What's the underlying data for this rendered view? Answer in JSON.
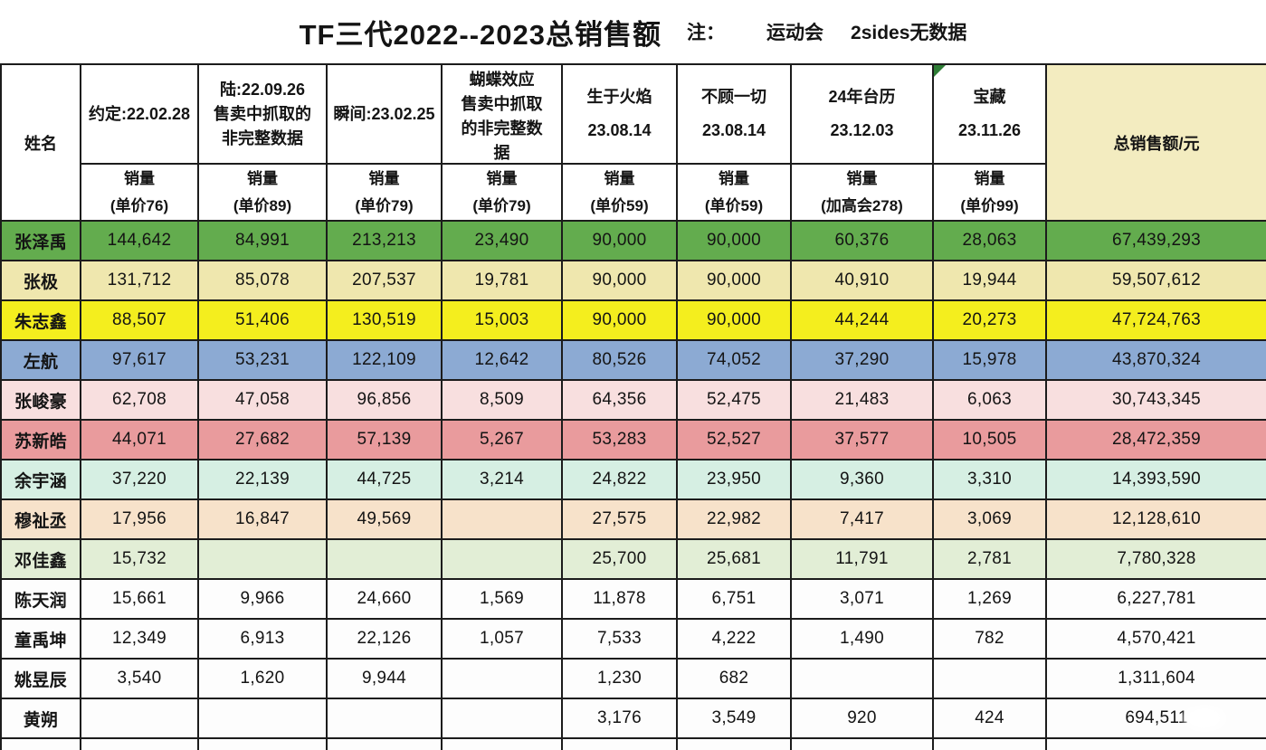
{
  "title": {
    "main": "TF三代2022--2023总销售额",
    "note_label": "注：",
    "note_items": [
      "运动会",
      "2sides无数据"
    ]
  },
  "colors": {
    "total_header_bg": "#f3ecc0",
    "grid_line": "#1c1c1c",
    "corner_marker_green": "#2e7d36"
  },
  "table": {
    "name_header": "姓名",
    "total_header": "总销售额/元",
    "products": [
      {
        "lines": [
          "约定:22.02.28"
        ],
        "sub": "销量",
        "price": "(单价76)"
      },
      {
        "lines": [
          "陆:22.09.26",
          "售卖中抓取的",
          "非完整数据"
        ],
        "sub": "销量",
        "price": "(单价89)"
      },
      {
        "lines": [
          "瞬间:23.02.25"
        ],
        "sub": "销量",
        "price": "(单价79)"
      },
      {
        "lines": [
          "蝴蝶效应",
          "售卖中抓取",
          "的非完整数",
          "据"
        ],
        "sub": "销量",
        "price": "(单价79)"
      },
      {
        "lines": [
          "生于火焰",
          "23.08.14"
        ],
        "sub": "销量",
        "price": "(单价59)"
      },
      {
        "lines": [
          "不顾一切",
          "23.08.14"
        ],
        "sub": "销量",
        "price": "(单价59)"
      },
      {
        "lines": [
          "24年台历",
          "23.12.03"
        ],
        "sub": "销量",
        "price": "(加高会278)"
      },
      {
        "lines": [
          "宝藏",
          "23.11.26"
        ],
        "sub": "销量",
        "price": "(单价99)",
        "corner_marker": "green-triangle"
      }
    ],
    "rows": [
      {
        "name": "张泽禹",
        "color": "#63ac4e",
        "values": [
          "144,642",
          "84,991",
          "213,213",
          "23,490",
          "90,000",
          "90,000",
          "60,376",
          "28,063"
        ],
        "total": "67,439,293"
      },
      {
        "name": "张极",
        "color": "#efe7ae",
        "values": [
          "131,712",
          "85,078",
          "207,537",
          "19,781",
          "90,000",
          "90,000",
          "40,910",
          "19,944"
        ],
        "total": "59,507,612"
      },
      {
        "name": "朱志鑫",
        "color": "#f4ee1e",
        "values": [
          "88,507",
          "51,406",
          "130,519",
          "15,003",
          "90,000",
          "90,000",
          "44,244",
          "20,273"
        ],
        "total": "47,724,763"
      },
      {
        "name": "左航",
        "color": "#8caad3",
        "values": [
          "97,617",
          "53,231",
          "122,109",
          "12,642",
          "80,526",
          "74,052",
          "37,290",
          "15,978"
        ],
        "total": "43,870,324"
      },
      {
        "name": "张峻豪",
        "color": "#f8dfdf",
        "values": [
          "62,708",
          "47,058",
          "96,856",
          "8,509",
          "64,356",
          "52,475",
          "21,483",
          "6,063"
        ],
        "total": "30,743,345"
      },
      {
        "name": "苏新皓",
        "color": "#e99b9d",
        "values": [
          "44,071",
          "27,682",
          "57,139",
          "5,267",
          "53,283",
          "52,527",
          "37,577",
          "10,505"
        ],
        "total": "28,472,359"
      },
      {
        "name": "余宇涵",
        "color": "#d6efe3",
        "values": [
          "37,220",
          "22,139",
          "44,725",
          "3,214",
          "24,822",
          "23,950",
          "9,360",
          "3,310"
        ],
        "total": "14,393,590"
      },
      {
        "name": "穆祉丞",
        "color": "#f7e2ca",
        "values": [
          "17,956",
          "16,847",
          "49,569",
          "",
          "27,575",
          "22,982",
          "7,417",
          "3,069"
        ],
        "total": "12,128,610"
      },
      {
        "name": "邓佳鑫",
        "color": "#e2eed6",
        "values": [
          "15,732",
          "",
          "",
          "",
          "25,700",
          "25,681",
          "11,791",
          "2,781"
        ],
        "total": "7,780,328"
      },
      {
        "name": "陈天润",
        "color": "#fdfdfd",
        "values": [
          "15,661",
          "9,966",
          "24,660",
          "1,569",
          "11,878",
          "6,751",
          "3,071",
          "1,269"
        ],
        "total": "6,227,781"
      },
      {
        "name": "童禹坤",
        "color": "#fdfdfd",
        "values": [
          "12,349",
          "6,913",
          "22,126",
          "1,057",
          "7,533",
          "4,222",
          "1,490",
          "782"
        ],
        "total": "4,570,421"
      },
      {
        "name": "姚昱辰",
        "color": "#fdfdfd",
        "values": [
          "3,540",
          "1,620",
          "9,944",
          "",
          "1,230",
          "682",
          "",
          ""
        ],
        "total": "1,311,604"
      },
      {
        "name": "黄朔",
        "color": "#fdfdfd",
        "values": [
          "",
          "",
          "",
          "",
          "3,176",
          "3,549",
          "920",
          "424"
        ],
        "total": "694,511",
        "watermark_over_total": true
      }
    ]
  },
  "chart_data": {
    "type": "table",
    "title": "TF三代2022--2023总销售额",
    "note": "注： 运动会 2sides无数据",
    "columns": [
      "约定:22.02.28 销量(单价76)",
      "陆:22.09.26 售卖中抓取的非完整数据 销量(单价89)",
      "瞬间:23.02.25 销量(单价79)",
      "蝴蝶效应 售卖中抓取的非完整数据 销量(单价79)",
      "生于火焰 23.08.14 销量(单价59)",
      "不顾一切 23.08.14 销量(单价59)",
      "24年台历 23.12.03 销量(加高会278)",
      "宝藏 23.11.26 销量(单价99)",
      "总销售额/元"
    ],
    "rows": [
      {
        "name": "张泽禹",
        "sales": [
          144642,
          84991,
          213213,
          23490,
          90000,
          90000,
          60376,
          28063
        ],
        "total": 67439293
      },
      {
        "name": "张极",
        "sales": [
          131712,
          85078,
          207537,
          19781,
          90000,
          90000,
          40910,
          19944
        ],
        "total": 59507612
      },
      {
        "name": "朱志鑫",
        "sales": [
          88507,
          51406,
          130519,
          15003,
          90000,
          90000,
          44244,
          20273
        ],
        "total": 47724763
      },
      {
        "name": "左航",
        "sales": [
          97617,
          53231,
          122109,
          12642,
          80526,
          74052,
          37290,
          15978
        ],
        "total": 43870324
      },
      {
        "name": "张峻豪",
        "sales": [
          62708,
          47058,
          96856,
          8509,
          64356,
          52475,
          21483,
          6063
        ],
        "total": 30743345
      },
      {
        "name": "苏新皓",
        "sales": [
          44071,
          27682,
          57139,
          5267,
          53283,
          52527,
          37577,
          10505
        ],
        "total": 28472359
      },
      {
        "name": "余宇涵",
        "sales": [
          37220,
          22139,
          44725,
          3214,
          24822,
          23950,
          9360,
          3310
        ],
        "total": 14393590
      },
      {
        "name": "穆祉丞",
        "sales": [
          17956,
          16847,
          49569,
          null,
          27575,
          22982,
          7417,
          3069
        ],
        "total": 12128610
      },
      {
        "name": "邓佳鑫",
        "sales": [
          15732,
          null,
          null,
          null,
          25700,
          25681,
          11791,
          2781
        ],
        "total": 7780328
      },
      {
        "name": "陈天润",
        "sales": [
          15661,
          9966,
          24660,
          1569,
          11878,
          6751,
          3071,
          1269
        ],
        "total": 6227781
      },
      {
        "name": "童禹坤",
        "sales": [
          12349,
          6913,
          22126,
          1057,
          7533,
          4222,
          1490,
          782
        ],
        "total": 4570421
      },
      {
        "name": "姚昱辰",
        "sales": [
          3540,
          1620,
          9944,
          null,
          1230,
          682,
          null,
          null
        ],
        "total": 1311604
      },
      {
        "name": "黄朔",
        "sales": [
          null,
          null,
          null,
          null,
          3176,
          3549,
          920,
          424
        ],
        "total": 694511
      }
    ]
  }
}
